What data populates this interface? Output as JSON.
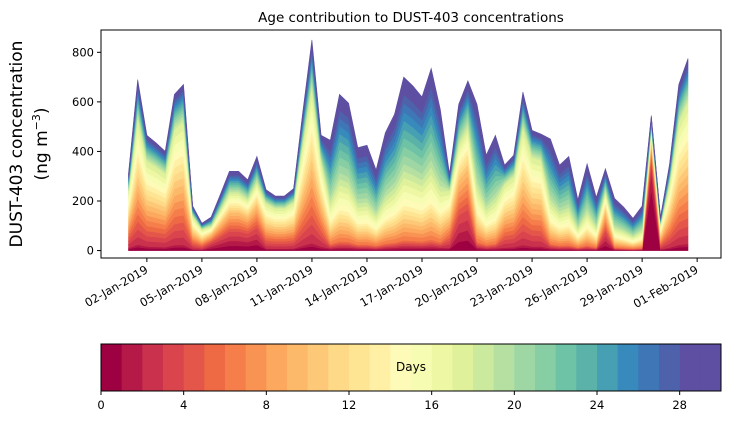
{
  "chart_data": {
    "type": "area",
    "stacked": true,
    "title": "Age contribution to DUST-403 concentrations",
    "ylabel_line1": "DUST-403 concentration",
    "ylabel_line2_prefix": "(ng m",
    "ylabel_line2_sup": "−3",
    "ylabel_line2_suffix": ")",
    "xlabel": "",
    "ylim": [
      -30,
      890
    ],
    "yticks": [
      0,
      200,
      400,
      600,
      800
    ],
    "x_start": "2019-01-01T00:00",
    "x_end": "2019-01-31T12:00",
    "x_step_hours": 12,
    "xlim_days_from_start": [
      -1.5,
      32.3
    ],
    "xticks": [
      {
        "day": 1,
        "label": "02-Jan-2019"
      },
      {
        "day": 4,
        "label": "05-Jan-2019"
      },
      {
        "day": 7,
        "label": "08-Jan-2019"
      },
      {
        "day": 10,
        "label": "11-Jan-2019"
      },
      {
        "day": 13,
        "label": "14-Jan-2019"
      },
      {
        "day": 16,
        "label": "17-Jan-2019"
      },
      {
        "day": 19,
        "label": "20-Jan-2019"
      },
      {
        "day": 22,
        "label": "23-Jan-2019"
      },
      {
        "day": 25,
        "label": "26-Jan-2019"
      },
      {
        "day": 28,
        "label": "29-Jan-2019"
      },
      {
        "day": 31,
        "label": "01-Feb-2019"
      }
    ],
    "total": [
      310,
      690,
      465,
      435,
      400,
      630,
      670,
      180,
      110,
      135,
      225,
      320,
      320,
      285,
      380,
      245,
      220,
      220,
      250,
      560,
      850,
      465,
      445,
      630,
      595,
      415,
      425,
      325,
      475,
      550,
      700,
      665,
      620,
      735,
      570,
      310,
      590,
      685,
      590,
      385,
      465,
      345,
      385,
      640,
      485,
      470,
      450,
      345,
      380,
      205,
      350,
      215,
      330,
      210,
      175,
      130,
      180,
      545,
      135,
      350,
      670,
      775
    ],
    "profile_index": [
      1,
      1,
      1,
      1,
      1,
      1,
      1,
      1,
      1,
      3,
      3,
      3,
      3,
      3,
      3,
      1,
      1,
      1,
      1,
      1,
      1,
      1,
      2,
      2,
      2,
      2,
      2,
      2,
      2,
      2,
      2,
      2,
      2,
      2,
      2,
      1,
      3,
      3,
      2,
      2,
      2,
      1,
      1,
      1,
      1,
      1,
      2,
      2,
      2,
      2,
      2,
      2,
      3,
      2,
      2,
      2,
      2,
      0,
      1,
      1,
      1,
      1
    ],
    "profiles": [
      [
        450,
        120,
        60,
        40,
        30,
        25,
        20,
        20,
        20,
        18,
        16,
        15,
        14,
        13,
        12,
        12,
        11,
        8,
        8,
        8,
        8,
        8,
        8,
        8,
        8,
        8,
        8,
        8,
        8,
        8
      ],
      [
        20,
        15,
        45,
        45,
        45,
        45,
        45,
        45,
        45,
        45,
        45,
        45,
        45,
        45,
        50,
        50,
        50,
        50,
        19,
        19,
        19,
        19,
        19,
        19,
        19,
        19,
        19,
        19,
        19,
        16
      ],
      [
        10,
        10,
        10,
        10,
        10,
        10,
        25,
        25,
        25,
        25,
        25,
        25,
        25,
        25,
        40,
        40,
        40,
        40,
        40,
        40,
        50,
        50,
        50,
        50,
        50,
        50,
        50,
        50,
        50,
        50
      ],
      [
        60,
        60,
        60,
        60,
        40,
        40,
        40,
        40,
        40,
        40,
        30,
        30,
        30,
        30,
        30,
        30,
        30,
        30,
        23,
        23,
        23,
        23,
        23,
        23,
        23,
        23,
        23,
        23,
        23,
        27
      ]
    ],
    "profile_units": "per-mille of total per age bin",
    "colorbar": {
      "label": "Days",
      "range": [
        0,
        30
      ],
      "ticks": [
        0,
        4,
        8,
        12,
        16,
        20,
        24,
        28
      ],
      "bins": 30,
      "colors": [
        "#9e0142",
        "#b41947",
        "#c9314c",
        "#d9444d",
        "#e4564a",
        "#ee6a45",
        "#f67e4b",
        "#f99354",
        "#fca85e",
        "#fdb96a",
        "#fdc978",
        "#fed987",
        "#fee593",
        "#fff0a6",
        "#fefbb8",
        "#f7fcb3",
        "#eef8a4",
        "#dff29b",
        "#cbea9d",
        "#b6e0a2",
        "#9fd7a4",
        "#88cea5",
        "#6ec2a5",
        "#5ab2a9",
        "#479fb3",
        "#378abb",
        "#3e76b6",
        "#4d62ab",
        "#5e4fa2",
        "#5e4fa2"
      ]
    }
  }
}
